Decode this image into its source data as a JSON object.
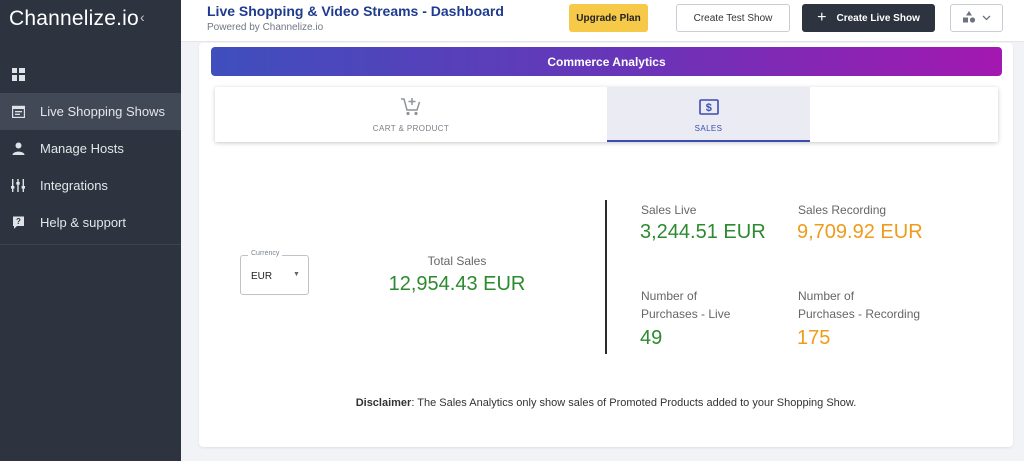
{
  "sidebar": {
    "brand": "Channelize.io",
    "collapse_icon": "chevron-left-icon",
    "items": [
      {
        "label": "",
        "icon": "dashboard-grid-icon"
      },
      {
        "label": "Live Shopping Shows",
        "icon": "calendar-list-icon",
        "active": true
      },
      {
        "label": "Manage Hosts",
        "icon": "person-icon"
      },
      {
        "label": "Integrations",
        "icon": "sliders-icon"
      },
      {
        "label": "Help & support",
        "icon": "help-icon"
      }
    ]
  },
  "header": {
    "title": "Live Shopping & Video Streams - Dashboard",
    "subtitle": "Powered by Channelize.io",
    "upgrade_label": "Upgrade Plan",
    "test_show_label": "Create Test Show",
    "live_show_label": "Create Live Show",
    "profile_icon": "shapes-icon"
  },
  "banner": {
    "title": "Commerce Analytics"
  },
  "tabs": [
    {
      "label": "CART & PRODUCT",
      "icon": "cart-add-icon"
    },
    {
      "label": "SALES",
      "icon": "dollar-icon",
      "active": true
    }
  ],
  "currency": {
    "label": "Currency",
    "value": "EUR"
  },
  "total": {
    "label": "Total Sales",
    "value": "12,954.43 EUR"
  },
  "stats": {
    "sales_live": {
      "label": "Sales Live",
      "value": "3,244.51 EUR"
    },
    "sales_recording": {
      "label": "Sales Recording",
      "value": "9,709.92 EUR"
    },
    "purchases_live": {
      "label_line1": "Number of",
      "label_line2": "Purchases - Live",
      "value": "49"
    },
    "purchases_recording": {
      "label_line1": "Number of",
      "label_line2": "Purchases - Recording",
      "value": "175"
    }
  },
  "disclaimer": {
    "label": "Disclaimer",
    "text": ": The Sales Analytics only show sales of Promoted Products added to your Shopping Show."
  },
  "colors": {
    "sidebar_bg": "#2d343f",
    "accent_blue": "#3b4db0",
    "green_value": "#2c8a2f",
    "orange_value": "#ef9b1b",
    "upgrade_yellow": "#f7c948"
  }
}
